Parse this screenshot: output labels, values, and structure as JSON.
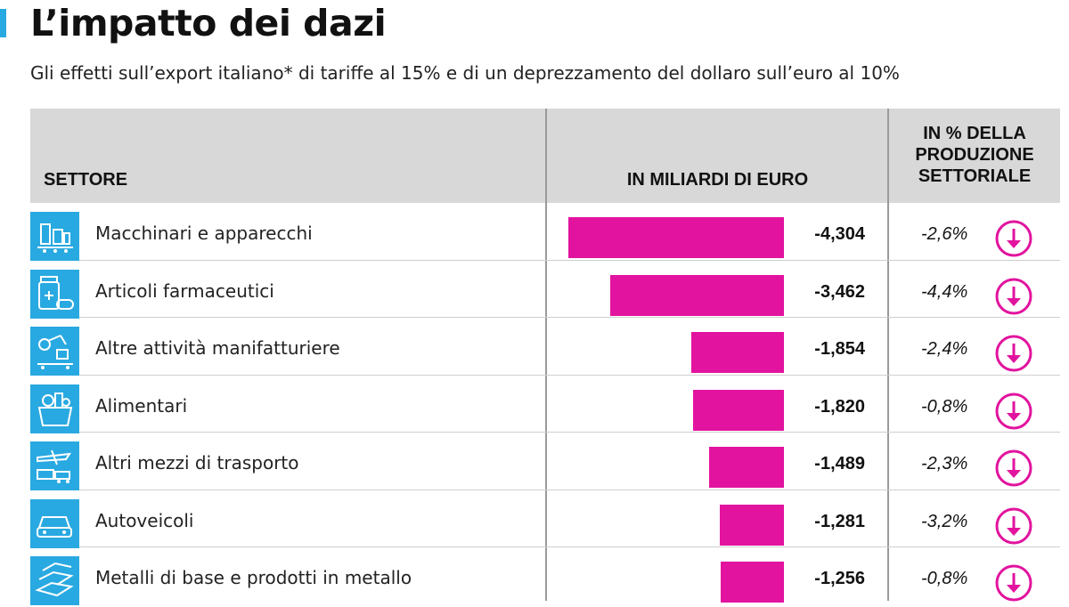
{
  "header": {
    "title": "L’impatto dei dazi",
    "subtitle": "Gli effetti sull’export italiano* di tariffe al 15% e di un deprezzamento del dollaro sull’euro al 10%"
  },
  "columns": {
    "settore": "SETTORE",
    "miliardi": "IN MILIARDI DI EURO",
    "percent": "IN % DELLA PRODUZIONE SETTORIALE"
  },
  "colors": {
    "bar": "#e2139e",
    "icon_bg": "#29a9e1",
    "header_bg": "#d8d8d8",
    "arrow": "#e2139e"
  },
  "chart_data": {
    "type": "bar",
    "orientation": "horizontal",
    "xlim": [
      -4.6,
      0
    ],
    "categories": [
      "Macchinari e apparecchi",
      "Articoli farmaceutici",
      "Altre attività manifatturiere",
      "Alimentari",
      "Altri mezzi di trasporto",
      "Autoveicoli",
      "Metalli di base e prodotti in metallo"
    ],
    "values": [
      -4.304,
      -3.462,
      -1.854,
      -1.82,
      -1.489,
      -1.281,
      -1.256
    ],
    "value_labels": [
      "-4,304",
      "-3,462",
      "-1,854",
      "-1,820",
      "-1,489",
      "-1,281",
      "-1,256"
    ],
    "percent_labels": [
      "-2,6%",
      "-4,4%",
      "-2,4%",
      "-0,8%",
      "-2,3%",
      "-3,2%",
      "-0,8%"
    ],
    "icons": [
      "factory-machine-icon",
      "medicine-icon",
      "robot-arm-icon",
      "food-basket-icon",
      "transport-icon",
      "car-icon",
      "metal-bars-icon"
    ]
  }
}
